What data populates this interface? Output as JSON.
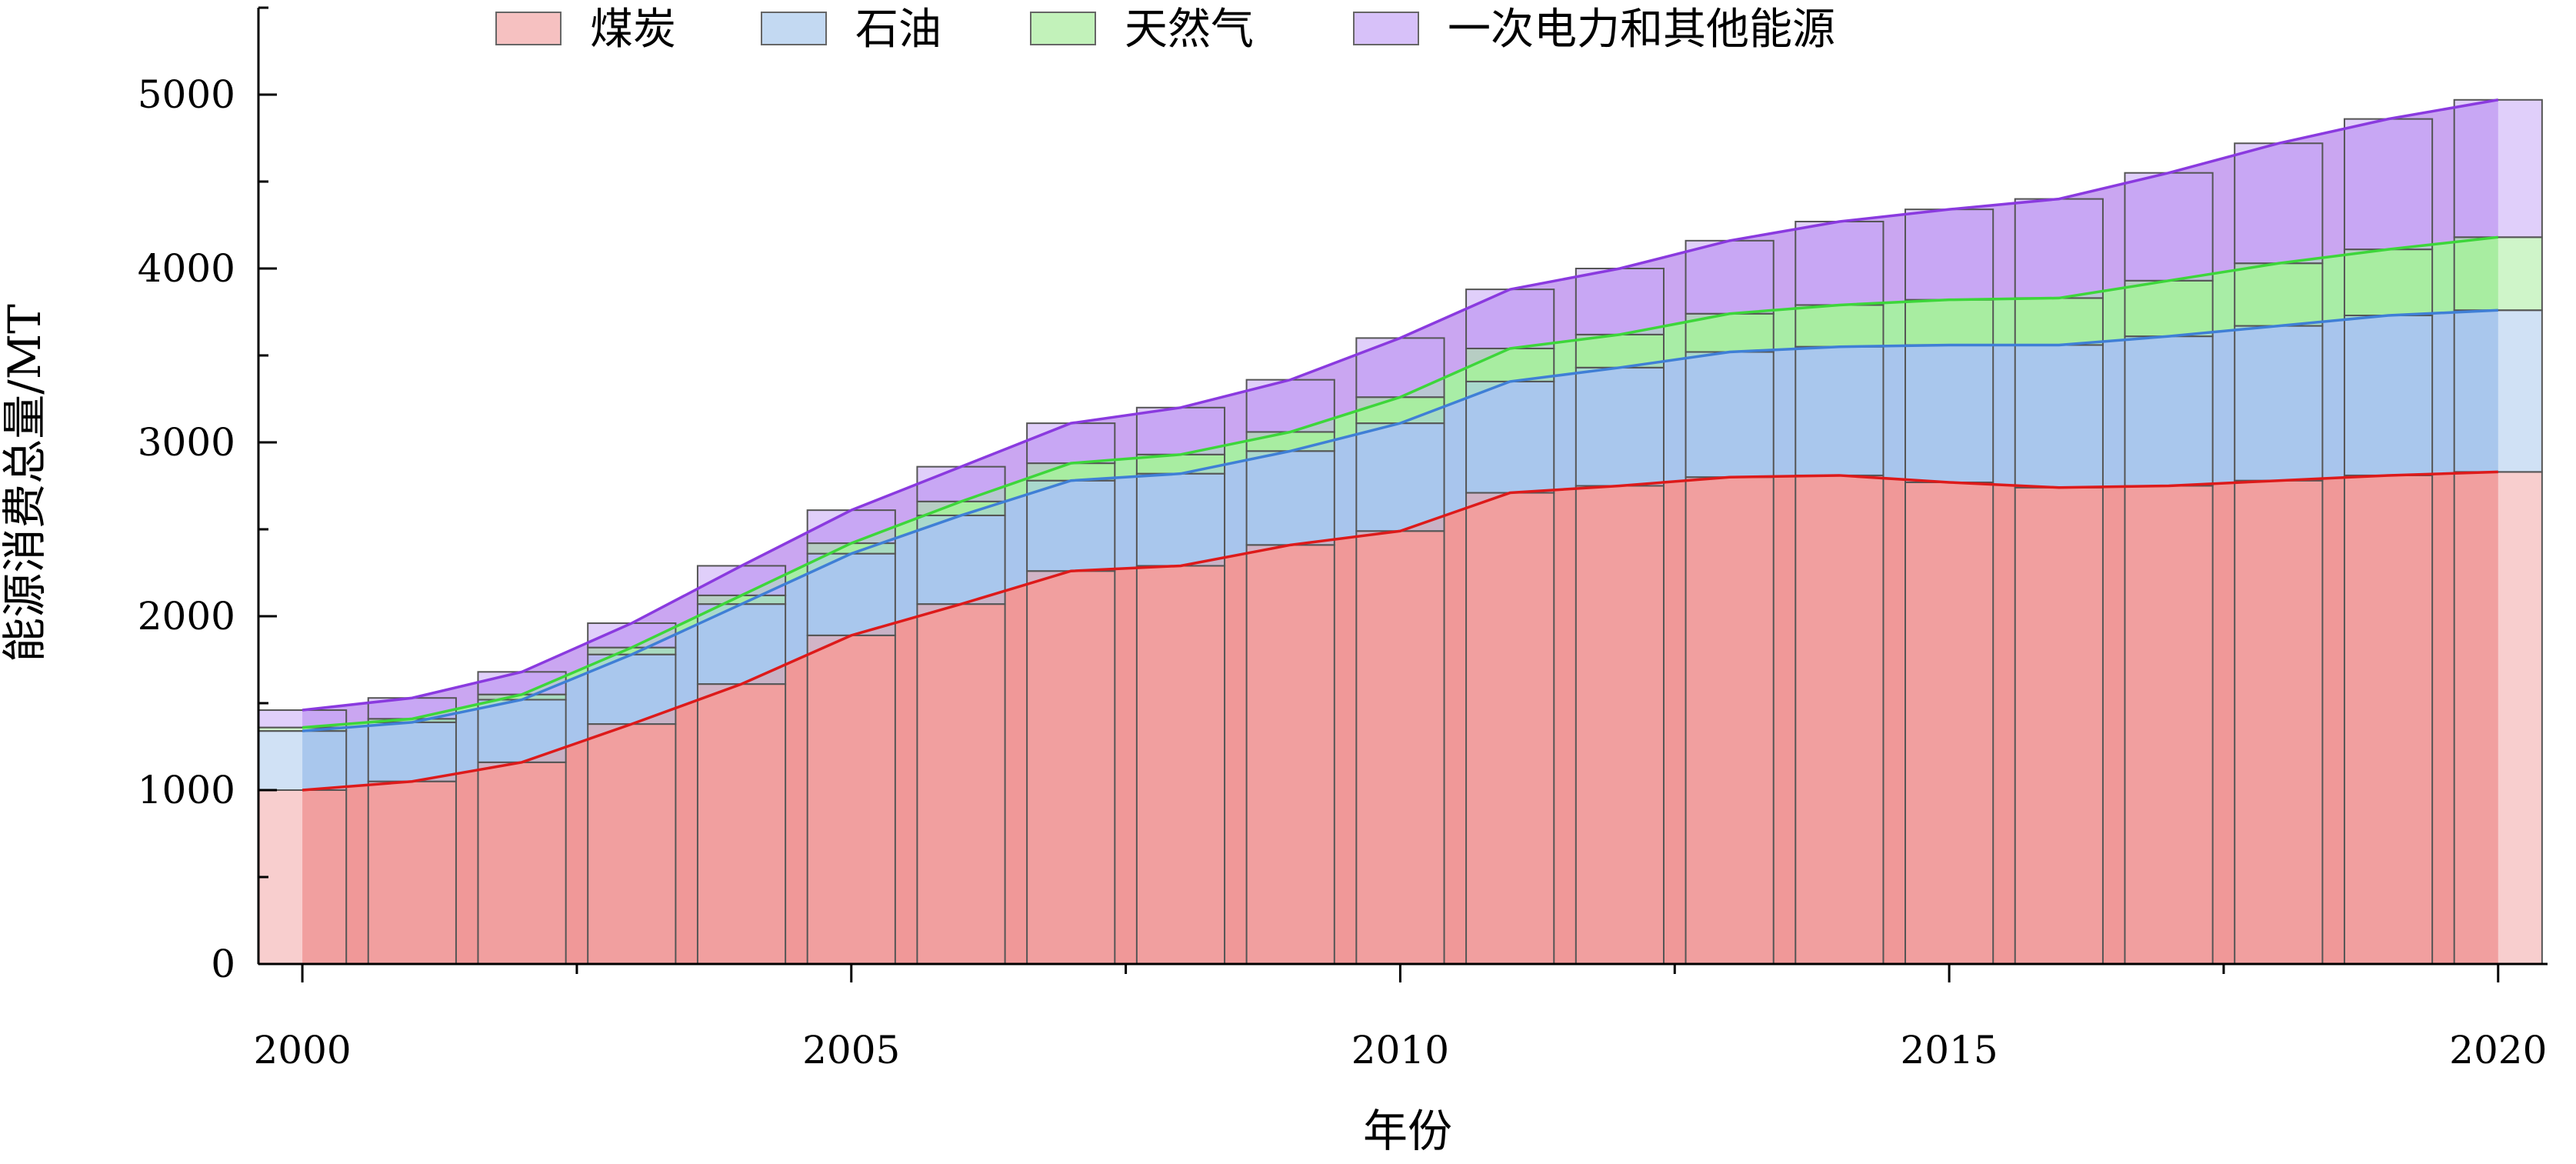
{
  "chart_data": {
    "type": "area",
    "stacked": true,
    "x": [
      2000,
      2001,
      2002,
      2003,
      2004,
      2005,
      2006,
      2007,
      2008,
      2009,
      2010,
      2011,
      2012,
      2013,
      2014,
      2015,
      2016,
      2017,
      2018,
      2019,
      2020
    ],
    "series": [
      {
        "name": "煤炭",
        "color": "#f2a6a6",
        "line_color": "#dd1a1a",
        "values": [
          1000,
          1050,
          1160,
          1380,
          1610,
          1890,
          2070,
          2260,
          2290,
          2410,
          2490,
          2710,
          2750,
          2800,
          2810,
          2770,
          2740,
          2750,
          2780,
          2810,
          2830
        ]
      },
      {
        "name": "石油",
        "color": "#a9c9ec",
        "line_color": "#3f7fd6",
        "values": [
          340,
          340,
          360,
          400,
          460,
          470,
          510,
          520,
          530,
          540,
          620,
          640,
          680,
          720,
          740,
          790,
          820,
          860,
          890,
          920,
          930
        ]
      },
      {
        "name": "天然气",
        "color": "#a8ec9c",
        "line_color": "#3dd63a",
        "values": [
          20,
          20,
          30,
          40,
          50,
          60,
          80,
          100,
          110,
          110,
          150,
          190,
          190,
          220,
          240,
          260,
          270,
          320,
          360,
          380,
          420
        ]
      },
      {
        "name": "一次电力和其他能源",
        "color": "#c6a7f6",
        "line_color": "#8a3adf",
        "values": [
          100,
          120,
          130,
          140,
          170,
          190,
          200,
          230,
          270,
          300,
          340,
          340,
          380,
          420,
          480,
          520,
          570,
          620,
          690,
          750,
          790
        ]
      }
    ],
    "xlabel": "年份",
    "ylabel": "能源消费总量/MT",
    "xlim": [
      1999.6,
      2020.45
    ],
    "ylim": [
      0,
      5500
    ],
    "xticks": [
      2000,
      2005,
      2010,
      2015,
      2020
    ],
    "yticks": [
      0,
      1000,
      2000,
      3000,
      4000,
      5000
    ],
    "legend_position": "top",
    "grid": false
  }
}
